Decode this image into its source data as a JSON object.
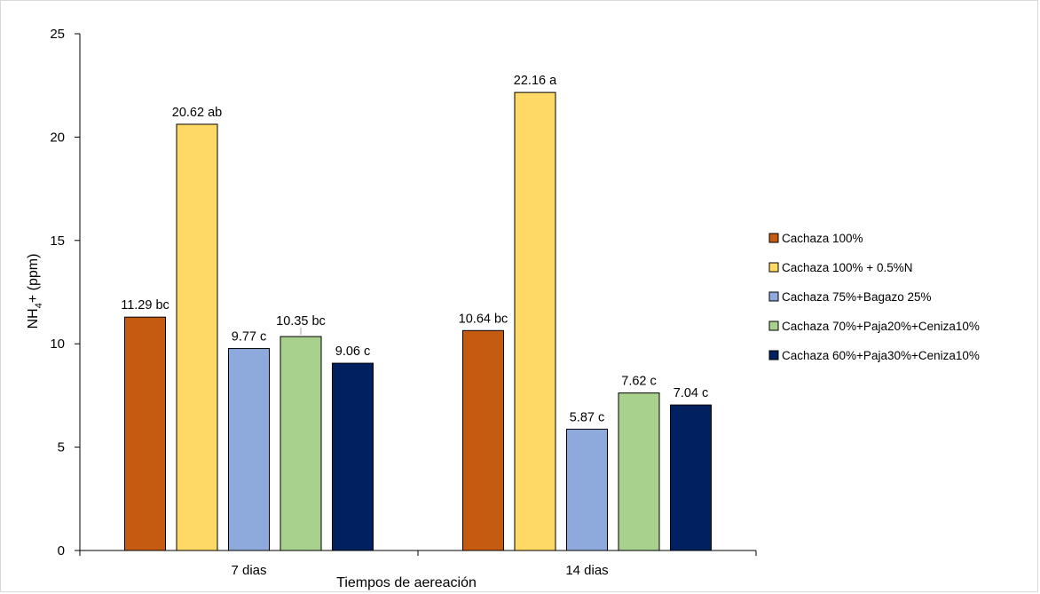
{
  "chart_data": {
    "type": "bar",
    "title": "",
    "xlabel": "Tiempos de aereación",
    "ylabel": "NH4+ (ppm)",
    "ylabel_parts": {
      "main": "NH",
      "sub": "4",
      "rest": "+ (ppm)"
    },
    "ylim": [
      0,
      25
    ],
    "yticks": [
      "0",
      "5",
      "10",
      "15",
      "20",
      "25"
    ],
    "grid": false,
    "legend_position": "right",
    "categories": [
      "7 dias",
      "14 dias"
    ],
    "series": [
      {
        "name": "Cachaza 100%",
        "color": "#C55A11",
        "values": [
          11.29,
          10.64
        ],
        "labels": [
          "11.29 bc",
          "10.64 bc"
        ]
      },
      {
        "name": "Cachaza 100% + 0.5%N",
        "color": "#FFD966",
        "values": [
          20.62,
          22.16
        ],
        "labels": [
          "20.62 ab",
          "22.16 a"
        ]
      },
      {
        "name": "Cachaza 75%+Bagazo 25%",
        "color": "#8EA9DB",
        "values": [
          9.77,
          5.87
        ],
        "labels": [
          "9.77 c",
          "5.87 c"
        ]
      },
      {
        "name": "Cachaza 70%+Paja20%+Ceniza10%",
        "color": "#A9D18E",
        "values": [
          10.35,
          7.62
        ],
        "labels": [
          "10.35 bc",
          "7.62 c"
        ]
      },
      {
        "name": "Cachaza 60%+Paja30%+Ceniza10%",
        "color": "#002060",
        "values": [
          9.06,
          7.04
        ],
        "labels": [
          "9.06 c",
          "7.04 c"
        ]
      }
    ]
  }
}
